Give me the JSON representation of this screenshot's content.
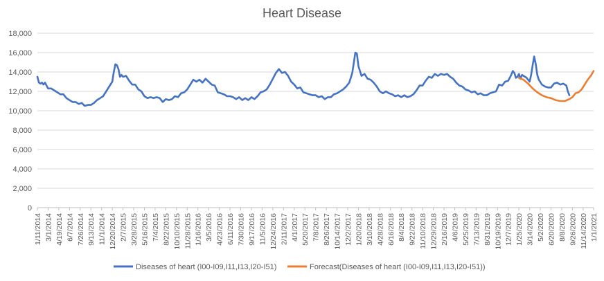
{
  "chart_data": {
    "type": "line",
    "title": "Heart Disease",
    "xlabel": "",
    "ylabel": "",
    "ylim": [
      0,
      18000
    ],
    "y_ticks": [
      0,
      2000,
      4000,
      6000,
      8000,
      10000,
      12000,
      14000,
      16000,
      18000
    ],
    "y_tick_labels": [
      "0",
      "2,000",
      "4,000",
      "6,000",
      "8,000",
      "10,000",
      "12,000",
      "14,000",
      "16,000",
      "18,000"
    ],
    "grid": "horizontal",
    "legend_position": "bottom",
    "x_range": [
      "2014-01-11",
      "2021-01-01"
    ],
    "x_tick_labels": [
      {
        "date": "2014-01-11",
        "label": "1/11/2014"
      },
      {
        "date": "2014-03-01",
        "label": "3/1/2014"
      },
      {
        "date": "2014-04-19",
        "label": "4/19/2014"
      },
      {
        "date": "2014-06-07",
        "label": "6/7/2014"
      },
      {
        "date": "2014-07-26",
        "label": "7/26/2014"
      },
      {
        "date": "2014-09-13",
        "label": "9/13/2014"
      },
      {
        "date": "2014-11-01",
        "label": "11/1/2014"
      },
      {
        "date": "2014-12-20",
        "label": "12/20/2014"
      },
      {
        "date": "2015-02-07",
        "label": "2/7/2015"
      },
      {
        "date": "2015-03-28",
        "label": "3/28/2015"
      },
      {
        "date": "2015-05-16",
        "label": "5/16/2015"
      },
      {
        "date": "2015-07-04",
        "label": "7/4/2015"
      },
      {
        "date": "2015-08-22",
        "label": "8/22/2015"
      },
      {
        "date": "2015-10-10",
        "label": "10/10/2015"
      },
      {
        "date": "2015-11-28",
        "label": "11/28/2015"
      },
      {
        "date": "2016-01-16",
        "label": "1/16/2016"
      },
      {
        "date": "2016-03-05",
        "label": "3/5/2016"
      },
      {
        "date": "2016-04-23",
        "label": "4/23/2016"
      },
      {
        "date": "2016-06-11",
        "label": "6/11/2016"
      },
      {
        "date": "2016-07-30",
        "label": "7/30/2016"
      },
      {
        "date": "2016-09-17",
        "label": "9/17/2016"
      },
      {
        "date": "2016-11-05",
        "label": "11/5/2016"
      },
      {
        "date": "2016-12-24",
        "label": "12/24/2016"
      },
      {
        "date": "2017-02-11",
        "label": "2/11/2017"
      },
      {
        "date": "2017-04-01",
        "label": "4/1/2017"
      },
      {
        "date": "2017-05-20",
        "label": "5/20/2017"
      },
      {
        "date": "2017-07-08",
        "label": "7/8/2017"
      },
      {
        "date": "2017-08-26",
        "label": "8/26/2017"
      },
      {
        "date": "2017-10-14",
        "label": "10/14/2017"
      },
      {
        "date": "2017-12-02",
        "label": "12/2/2017"
      },
      {
        "date": "2018-01-20",
        "label": "1/20/2018"
      },
      {
        "date": "2018-03-10",
        "label": "3/10/2018"
      },
      {
        "date": "2018-04-28",
        "label": "4/28/2018"
      },
      {
        "date": "2018-06-16",
        "label": "6/16/2018"
      },
      {
        "date": "2018-08-04",
        "label": "8/4/2018"
      },
      {
        "date": "2018-09-22",
        "label": "9/22/2018"
      },
      {
        "date": "2018-11-10",
        "label": "11/10/2018"
      },
      {
        "date": "2018-12-29",
        "label": "12/29/2018"
      },
      {
        "date": "2019-02-16",
        "label": "2/16/2019"
      },
      {
        "date": "2019-04-06",
        "label": "4/6/2019"
      },
      {
        "date": "2019-05-25",
        "label": "5/25/2019"
      },
      {
        "date": "2019-07-13",
        "label": "7/13/2019"
      },
      {
        "date": "2019-08-31",
        "label": "8/31/2019"
      },
      {
        "date": "2019-10-19",
        "label": "10/19/2019"
      },
      {
        "date": "2019-12-07",
        "label": "12/7/2019"
      },
      {
        "date": "2020-01-25",
        "label": "1/25/2020"
      },
      {
        "date": "2020-03-14",
        "label": "3/14/2020"
      },
      {
        "date": "2020-05-02",
        "label": "5/2/2020"
      },
      {
        "date": "2020-06-20",
        "label": "6/20/2020"
      },
      {
        "date": "2020-08-08",
        "label": "8/8/2020"
      },
      {
        "date": "2020-09-26",
        "label": "9/26/2020"
      },
      {
        "date": "2020-11-14",
        "label": "11/14/2020"
      },
      {
        "date": "2021-01-01",
        "label": "1/1/2021"
      }
    ],
    "series": [
      {
        "name": "Diseases of heart (I00-I09,I11,I13,I20-I51)",
        "color": "#4472c4",
        "points": [
          [
            "2014-01-11",
            13500
          ],
          [
            "2014-01-18",
            12900
          ],
          [
            "2014-01-25",
            12800
          ],
          [
            "2014-02-01",
            12900
          ],
          [
            "2014-02-08",
            12700
          ],
          [
            "2014-02-15",
            12900
          ],
          [
            "2014-03-01",
            12300
          ],
          [
            "2014-03-15",
            12300
          ],
          [
            "2014-03-29",
            12100
          ],
          [
            "2014-04-12",
            11900
          ],
          [
            "2014-04-26",
            11700
          ],
          [
            "2014-05-10",
            11700
          ],
          [
            "2014-05-24",
            11300
          ],
          [
            "2014-06-07",
            11100
          ],
          [
            "2014-06-21",
            10900
          ],
          [
            "2014-07-05",
            10900
          ],
          [
            "2014-07-19",
            10700
          ],
          [
            "2014-08-02",
            10800
          ],
          [
            "2014-08-16",
            10500
          ],
          [
            "2014-08-30",
            10600
          ],
          [
            "2014-09-13",
            10600
          ],
          [
            "2014-09-27",
            10800
          ],
          [
            "2014-10-11",
            11100
          ],
          [
            "2014-10-25",
            11300
          ],
          [
            "2014-11-08",
            11500
          ],
          [
            "2014-11-22",
            12000
          ],
          [
            "2014-12-06",
            12500
          ],
          [
            "2014-12-20",
            13000
          ],
          [
            "2014-12-27",
            14000
          ],
          [
            "2015-01-03",
            14800
          ],
          [
            "2015-01-10",
            14700
          ],
          [
            "2015-01-17",
            14300
          ],
          [
            "2015-01-24",
            13500
          ],
          [
            "2015-01-31",
            13700
          ],
          [
            "2015-02-07",
            13500
          ],
          [
            "2015-02-21",
            13600
          ],
          [
            "2015-03-07",
            13100
          ],
          [
            "2015-03-21",
            12700
          ],
          [
            "2015-04-04",
            12700
          ],
          [
            "2015-04-18",
            12200
          ],
          [
            "2015-05-02",
            12000
          ],
          [
            "2015-05-16",
            11500
          ],
          [
            "2015-05-30",
            11300
          ],
          [
            "2015-06-13",
            11400
          ],
          [
            "2015-06-27",
            11300
          ],
          [
            "2015-07-11",
            11400
          ],
          [
            "2015-07-25",
            11300
          ],
          [
            "2015-08-08",
            10900
          ],
          [
            "2015-08-22",
            11200
          ],
          [
            "2015-09-05",
            11100
          ],
          [
            "2015-09-19",
            11200
          ],
          [
            "2015-10-03",
            11500
          ],
          [
            "2015-10-17",
            11400
          ],
          [
            "2015-10-31",
            11800
          ],
          [
            "2015-11-14",
            11900
          ],
          [
            "2015-11-28",
            12200
          ],
          [
            "2015-12-12",
            12700
          ],
          [
            "2015-12-26",
            13200
          ],
          [
            "2016-01-09",
            13000
          ],
          [
            "2016-01-23",
            13200
          ],
          [
            "2016-02-06",
            12900
          ],
          [
            "2016-02-20",
            13300
          ],
          [
            "2016-03-05",
            13000
          ],
          [
            "2016-03-19",
            12700
          ],
          [
            "2016-04-02",
            12600
          ],
          [
            "2016-04-16",
            11900
          ],
          [
            "2016-04-30",
            11800
          ],
          [
            "2016-05-14",
            11700
          ],
          [
            "2016-05-28",
            11500
          ],
          [
            "2016-06-11",
            11500
          ],
          [
            "2016-06-25",
            11400
          ],
          [
            "2016-07-09",
            11200
          ],
          [
            "2016-07-23",
            11400
          ],
          [
            "2016-08-06",
            11100
          ],
          [
            "2016-08-20",
            11300
          ],
          [
            "2016-09-03",
            11100
          ],
          [
            "2016-09-17",
            11400
          ],
          [
            "2016-10-01",
            11200
          ],
          [
            "2016-10-15",
            11500
          ],
          [
            "2016-10-29",
            11900
          ],
          [
            "2016-11-12",
            12000
          ],
          [
            "2016-11-26",
            12200
          ],
          [
            "2016-12-10",
            12700
          ],
          [
            "2016-12-24",
            13300
          ],
          [
            "2017-01-07",
            13900
          ],
          [
            "2017-01-21",
            14300
          ],
          [
            "2017-02-04",
            13900
          ],
          [
            "2017-02-18",
            14000
          ],
          [
            "2017-03-04",
            13600
          ],
          [
            "2017-03-18",
            13000
          ],
          [
            "2017-04-01",
            12700
          ],
          [
            "2017-04-15",
            12300
          ],
          [
            "2017-04-29",
            12400
          ],
          [
            "2017-05-13",
            11900
          ],
          [
            "2017-05-27",
            11800
          ],
          [
            "2017-06-10",
            11700
          ],
          [
            "2017-06-24",
            11600
          ],
          [
            "2017-07-08",
            11600
          ],
          [
            "2017-07-22",
            11400
          ],
          [
            "2017-08-05",
            11500
          ],
          [
            "2017-08-19",
            11200
          ],
          [
            "2017-09-02",
            11400
          ],
          [
            "2017-09-16",
            11400
          ],
          [
            "2017-09-30",
            11700
          ],
          [
            "2017-10-14",
            11800
          ],
          [
            "2017-10-28",
            12000
          ],
          [
            "2017-11-11",
            12200
          ],
          [
            "2017-11-25",
            12500
          ],
          [
            "2017-12-09",
            12900
          ],
          [
            "2017-12-23",
            13900
          ],
          [
            "2018-01-06",
            16000
          ],
          [
            "2018-01-13",
            15900
          ],
          [
            "2018-01-20",
            14600
          ],
          [
            "2018-02-03",
            13600
          ],
          [
            "2018-02-17",
            13800
          ],
          [
            "2018-03-03",
            13300
          ],
          [
            "2018-03-17",
            13200
          ],
          [
            "2018-03-31",
            12900
          ],
          [
            "2018-04-14",
            12500
          ],
          [
            "2018-04-28",
            12000
          ],
          [
            "2018-05-12",
            11800
          ],
          [
            "2018-05-26",
            12000
          ],
          [
            "2018-06-09",
            11800
          ],
          [
            "2018-06-23",
            11700
          ],
          [
            "2018-07-07",
            11500
          ],
          [
            "2018-07-21",
            11600
          ],
          [
            "2018-08-04",
            11400
          ],
          [
            "2018-08-18",
            11600
          ],
          [
            "2018-09-01",
            11400
          ],
          [
            "2018-09-15",
            11500
          ],
          [
            "2018-09-29",
            11700
          ],
          [
            "2018-10-13",
            12100
          ],
          [
            "2018-10-27",
            12600
          ],
          [
            "2018-11-10",
            12600
          ],
          [
            "2018-11-24",
            13100
          ],
          [
            "2018-12-08",
            13500
          ],
          [
            "2018-12-22",
            13400
          ],
          [
            "2019-01-05",
            13800
          ],
          [
            "2019-01-19",
            13600
          ],
          [
            "2019-02-02",
            13800
          ],
          [
            "2019-02-16",
            13700
          ],
          [
            "2019-03-02",
            13800
          ],
          [
            "2019-03-16",
            13500
          ],
          [
            "2019-03-30",
            13300
          ],
          [
            "2019-04-13",
            12900
          ],
          [
            "2019-04-27",
            12600
          ],
          [
            "2019-05-11",
            12500
          ],
          [
            "2019-05-25",
            12200
          ],
          [
            "2019-06-08",
            12100
          ],
          [
            "2019-06-22",
            11900
          ],
          [
            "2019-07-06",
            12000
          ],
          [
            "2019-07-20",
            11700
          ],
          [
            "2019-08-03",
            11800
          ],
          [
            "2019-08-17",
            11600
          ],
          [
            "2019-08-31",
            11600
          ],
          [
            "2019-09-14",
            11800
          ],
          [
            "2019-09-28",
            11900
          ],
          [
            "2019-10-12",
            12000
          ],
          [
            "2019-10-26",
            12700
          ],
          [
            "2019-11-09",
            12600
          ],
          [
            "2019-11-23",
            13000
          ],
          [
            "2019-12-07",
            13100
          ],
          [
            "2019-12-21",
            13700
          ],
          [
            "2019-12-28",
            14100
          ],
          [
            "2020-01-04",
            13900
          ],
          [
            "2020-01-11",
            13400
          ],
          [
            "2020-01-18",
            13500
          ],
          [
            "2020-01-25",
            13800
          ],
          [
            "2020-02-01",
            13300
          ],
          [
            "2020-02-08",
            13700
          ],
          [
            "2020-02-15",
            13600
          ],
          [
            "2020-02-29",
            13400
          ],
          [
            "2020-03-14",
            13000
          ],
          [
            "2020-03-21",
            13700
          ],
          [
            "2020-03-28",
            14700
          ],
          [
            "2020-04-04",
            15600
          ],
          [
            "2020-04-11",
            14800
          ],
          [
            "2020-04-18",
            13700
          ],
          [
            "2020-04-25",
            13200
          ],
          [
            "2020-05-09",
            12700
          ],
          [
            "2020-05-23",
            12500
          ],
          [
            "2020-06-06",
            12400
          ],
          [
            "2020-06-20",
            12400
          ],
          [
            "2020-07-04",
            12800
          ],
          [
            "2020-07-18",
            12900
          ],
          [
            "2020-08-01",
            12700
          ],
          [
            "2020-08-15",
            12800
          ],
          [
            "2020-08-29",
            12600
          ],
          [
            "2020-09-05",
            12000
          ],
          [
            "2020-09-12",
            11600
          ]
        ]
      },
      {
        "name": "Forecast(Diseases of heart (I00-I09,I11,I13,I20-I51))",
        "color": "#ed7d31",
        "points": [
          [
            "2020-01-25",
            13400
          ],
          [
            "2020-02-15",
            13200
          ],
          [
            "2020-03-07",
            12800
          ],
          [
            "2020-03-28",
            12300
          ],
          [
            "2020-04-18",
            11900
          ],
          [
            "2020-05-09",
            11600
          ],
          [
            "2020-05-30",
            11400
          ],
          [
            "2020-06-20",
            11300
          ],
          [
            "2020-07-11",
            11100
          ],
          [
            "2020-08-01",
            11000
          ],
          [
            "2020-08-22",
            11000
          ],
          [
            "2020-09-12",
            11200
          ],
          [
            "2020-09-26",
            11400
          ],
          [
            "2020-10-10",
            11800
          ],
          [
            "2020-10-24",
            11900
          ],
          [
            "2020-11-07",
            12200
          ],
          [
            "2020-11-21",
            12700
          ],
          [
            "2020-12-05",
            13200
          ],
          [
            "2020-12-19",
            13600
          ],
          [
            "2021-01-01",
            14100
          ]
        ]
      }
    ]
  }
}
